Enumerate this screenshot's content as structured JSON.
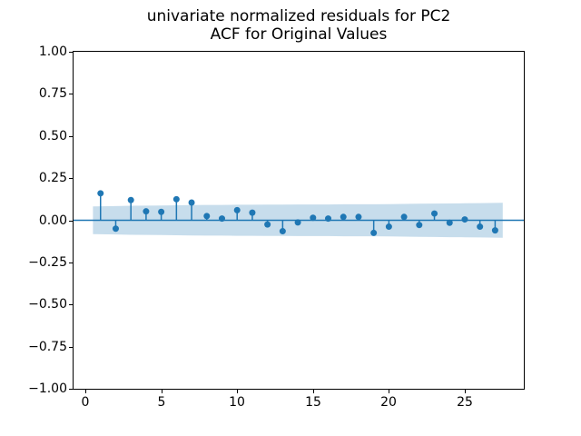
{
  "figure": {
    "title_line1": "univariate normalized residuals for PC2",
    "title_line2": "ACF for Original Values"
  },
  "chart_data": {
    "type": "stem",
    "subtype": "autocorrelation-plot",
    "title": "univariate normalized residuals for PC2\nACF for Original Values",
    "xlabel": "",
    "ylabel": "",
    "grid": false,
    "legend": "none",
    "xlim": [
      -0.78,
      28.89
    ],
    "ylim": [
      -1.0,
      1.0
    ],
    "x_ticks": [
      0,
      5,
      10,
      15,
      20,
      25
    ],
    "x_tick_labels": [
      "0",
      "5",
      "10",
      "15",
      "20",
      "25"
    ],
    "y_ticks": [
      1.0,
      0.75,
      0.5,
      0.25,
      0.0,
      -0.25,
      -0.5,
      -0.75,
      -1.0
    ],
    "y_tick_labels": [
      "1.00",
      "0.75",
      "0.50",
      "0.25",
      "0.00",
      "−0.25",
      "−0.50",
      "−0.75",
      "−1.00"
    ],
    "zero_line_y": 0,
    "lags": [
      1,
      2,
      3,
      4,
      5,
      6,
      7,
      8,
      9,
      10,
      11,
      12,
      13,
      14,
      15,
      16,
      17,
      18,
      19,
      20,
      21,
      22,
      23,
      24,
      25,
      26,
      27
    ],
    "acf_values": [
      0.16,
      -0.05,
      0.12,
      0.053,
      0.05,
      0.125,
      0.105,
      0.025,
      0.01,
      0.06,
      0.045,
      -0.025,
      -0.065,
      -0.013,
      0.015,
      0.01,
      0.02,
      0.02,
      -0.075,
      -0.038,
      0.02,
      -0.028,
      0.04,
      -0.015,
      0.005,
      -0.038,
      -0.06
    ],
    "confidence_band": {
      "x_start": 0.5,
      "x_end": 27.5,
      "half_widths": [
        0.082,
        0.084,
        0.086,
        0.087,
        0.088,
        0.089,
        0.09,
        0.091,
        0.091,
        0.092,
        0.092,
        0.093,
        0.093,
        0.094,
        0.094,
        0.094,
        0.095,
        0.095,
        0.095,
        0.096,
        0.097,
        0.098,
        0.099,
        0.1,
        0.101,
        0.102,
        0.104
      ]
    },
    "colors": {
      "series": "#1f77b4",
      "band": "#1f77b4",
      "band_opacity": 0.25,
      "axis": "#000000",
      "text": "#000000",
      "background": "#ffffff"
    },
    "marker_radius": 3.5,
    "stem_width": 1.5,
    "zero_line_width": 1.5
  }
}
